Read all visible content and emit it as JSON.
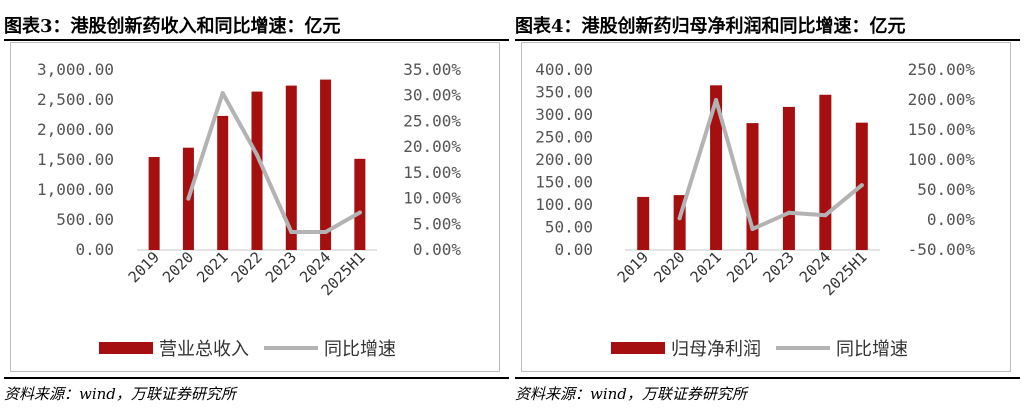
{
  "left": {
    "title": "图表3：港股创新药收入和同比增速：亿元",
    "source": "资料来源：wind，万联证券研究所",
    "chart_data": {
      "type": "bar",
      "categories": [
        "2019",
        "2020",
        "2021",
        "2022",
        "2023",
        "2024",
        "2025H1"
      ],
      "series": [
        {
          "name": "营业总收入",
          "kind": "bar",
          "axis": "left",
          "color": "#a50f0f",
          "values": [
            1550,
            1705,
            2235,
            2640,
            2740,
            2840,
            1520
          ]
        },
        {
          "name": "同比增速",
          "kind": "line",
          "axis": "right",
          "color": "#b3b3b3",
          "values": [
            null,
            10.0,
            30.5,
            18.5,
            3.5,
            3.5,
            7.3
          ]
        }
      ],
      "ylim_left": [
        0,
        3000
      ],
      "yticks_left": [
        "0.00",
        "500.00",
        "1,000.00",
        "1,500.00",
        "2,000.00",
        "2,500.00",
        "3,000.00"
      ],
      "ylim_right": [
        0,
        35
      ],
      "yticks_right": [
        "0.00%",
        "5.00%",
        "10.00%",
        "15.00%",
        "20.00%",
        "25.00%",
        "30.00%",
        "35.00%"
      ],
      "legend_position": "bottom"
    }
  },
  "right": {
    "title": "图表4：港股创新药归母净利润和同比增速：亿元",
    "source": "资料来源：wind，万联证券研究所",
    "chart_data": {
      "type": "bar",
      "categories": [
        "2019",
        "2020",
        "2021",
        "2022",
        "2023",
        "2024",
        "2025H1"
      ],
      "series": [
        {
          "name": "归母净利润",
          "kind": "bar",
          "axis": "left",
          "color": "#a50f0f",
          "values": [
            118,
            122,
            366,
            282,
            318,
            345,
            283
          ]
        },
        {
          "name": "同比增速",
          "kind": "line",
          "axis": "right",
          "color": "#b3b3b3",
          "values": [
            null,
            3,
            200,
            -15,
            12,
            8,
            58
          ]
        }
      ],
      "ylim_left": [
        0,
        400
      ],
      "yticks_left": [
        "0.00",
        "50.00",
        "100.00",
        "150.00",
        "200.00",
        "250.00",
        "300.00",
        "350.00",
        "400.00"
      ],
      "ylim_right": [
        -50,
        250
      ],
      "yticks_right": [
        "-50.00%",
        "0.00%",
        "50.00%",
        "100.00%",
        "150.00%",
        "200.00%",
        "250.00%"
      ],
      "legend_position": "bottom"
    }
  }
}
